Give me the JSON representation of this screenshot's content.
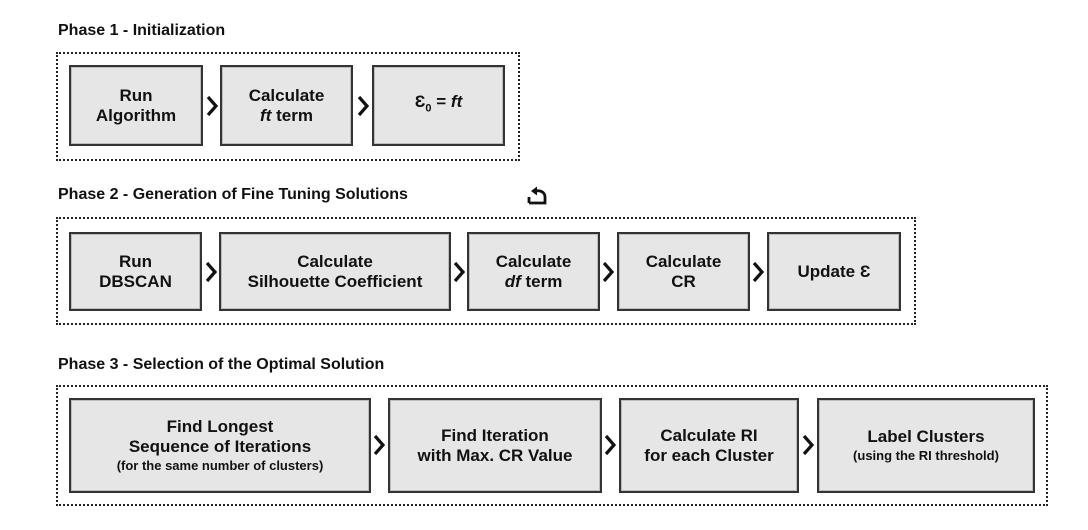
{
  "phase1": {
    "title": "Phase 1 - Initialization",
    "steps": [
      {
        "line1": "Run",
        "line2": "Algorithm"
      },
      {
        "line1": "Calculate",
        "line2_italic": "ft",
        "line2_rest": " term"
      },
      {
        "eps": "Ɛ",
        "sub": "0",
        "eq": " = ",
        "rhs_italic": "ft"
      }
    ]
  },
  "phase2": {
    "title": "Phase 2 - Generation of Fine Tuning Solutions",
    "loop_icon": "loop-arrow-icon",
    "steps": [
      {
        "line1": "Run",
        "line2": "DBSCAN"
      },
      {
        "line1": "Calculate",
        "line2": "Silhouette Coefficient"
      },
      {
        "line1": "Calculate",
        "line2_italic": "df",
        "line2_rest": " term"
      },
      {
        "line1": "Calculate",
        "line2": "CR"
      },
      {
        "line1": "Update Ɛ"
      }
    ]
  },
  "phase3": {
    "title": "Phase 3 - Selection of the Optimal Solution",
    "steps": [
      {
        "line1": "Find Longest",
        "line2": "Sequence of Iterations",
        "line3": "(for the same number of clusters)"
      },
      {
        "line1": "Find Iteration",
        "line2": "with Max. CR Value"
      },
      {
        "line1": "Calculate RI",
        "line2": "for each Cluster"
      },
      {
        "line1": "Label Clusters",
        "line2": "(using the RI threshold)"
      }
    ]
  },
  "arrow_icon": "chevron-right-icon"
}
